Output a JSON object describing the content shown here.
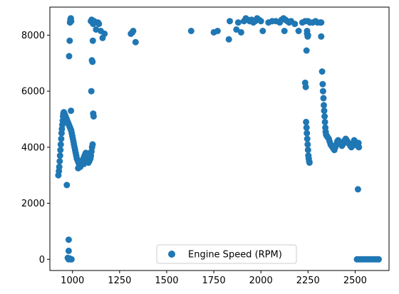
{
  "chart_data": {
    "type": "scatter",
    "title": "",
    "xlabel": "",
    "ylabel": "",
    "xlim": [
      880,
      2680
    ],
    "ylim": [
      -400,
      9000
    ],
    "xticks": [
      1000,
      1250,
      1500,
      1750,
      2000,
      2250,
      2500
    ],
    "yticks": [
      0,
      2000,
      4000,
      6000,
      8000
    ],
    "grid": false,
    "legend_position": "lower center",
    "series": [
      {
        "name": "Engine Speed (RPM)",
        "color": "#1f77b4",
        "points": [
          [
            925,
            3000
          ],
          [
            928,
            3150
          ],
          [
            930,
            3300
          ],
          [
            932,
            3500
          ],
          [
            934,
            3700
          ],
          [
            936,
            3900
          ],
          [
            938,
            4100
          ],
          [
            940,
            4300
          ],
          [
            942,
            4500
          ],
          [
            944,
            4650
          ],
          [
            946,
            4800
          ],
          [
            948,
            4950
          ],
          [
            950,
            5100
          ],
          [
            952,
            5200
          ],
          [
            954,
            5250
          ],
          [
            957,
            5200
          ],
          [
            960,
            5150
          ],
          [
            963,
            5100
          ],
          [
            966,
            5050
          ],
          [
            969,
            5000
          ],
          [
            972,
            4950
          ],
          [
            975,
            4900
          ],
          [
            978,
            4850
          ],
          [
            981,
            4800
          ],
          [
            984,
            4750
          ],
          [
            987,
            4700
          ],
          [
            990,
            4650
          ],
          [
            993,
            4600
          ],
          [
            996,
            4500
          ],
          [
            999,
            4400
          ],
          [
            1002,
            4300
          ],
          [
            1005,
            4200
          ],
          [
            1008,
            4100
          ],
          [
            1011,
            4000
          ],
          [
            1014,
            3900
          ],
          [
            1017,
            3800
          ],
          [
            1020,
            3700
          ],
          [
            1023,
            3600
          ],
          [
            1026,
            3550
          ],
          [
            1029,
            3500
          ],
          [
            1032,
            3450
          ],
          [
            1035,
            3400
          ],
          [
            1038,
            3350
          ],
          [
            1041,
            3300
          ],
          [
            1044,
            3350
          ],
          [
            1047,
            3400
          ],
          [
            1050,
            3450
          ],
          [
            1053,
            3500
          ],
          [
            1056,
            3550
          ],
          [
            1059,
            3600
          ],
          [
            1062,
            3650
          ],
          [
            1065,
            3700
          ],
          [
            1068,
            3750
          ],
          [
            1071,
            3800
          ],
          [
            1074,
            3750
          ],
          [
            1077,
            3700
          ],
          [
            1080,
            3650
          ],
          [
            1083,
            3600
          ],
          [
            1086,
            3550
          ],
          [
            1089,
            3500
          ],
          [
            1092,
            3550
          ],
          [
            1095,
            3600
          ],
          [
            1098,
            3700
          ],
          [
            1101,
            3850
          ],
          [
            1104,
            4000
          ],
          [
            1107,
            4100
          ],
          [
            1030,
            3250
          ],
          [
            1045,
            3500
          ],
          [
            1060,
            3400
          ],
          [
            1085,
            3450
          ],
          [
            970,
            2650
          ],
          [
            980,
            700
          ],
          [
            980,
            300
          ],
          [
            975,
            50
          ],
          [
            985,
            30
          ],
          [
            980,
            0
          ],
          [
            990,
            0
          ],
          [
            995,
            0
          ],
          [
            982,
            7250
          ],
          [
            985,
            7800
          ],
          [
            987,
            8450
          ],
          [
            989,
            8550
          ],
          [
            991,
            8600
          ],
          [
            993,
            8500
          ],
          [
            992,
            5300
          ],
          [
            1100,
            6000
          ],
          [
            1103,
            7100
          ],
          [
            1106,
            7050
          ],
          [
            1108,
            7800
          ],
          [
            1110,
            5200
          ],
          [
            1112,
            5100
          ],
          [
            1098,
            8500
          ],
          [
            1102,
            8550
          ],
          [
            1106,
            8450
          ],
          [
            1110,
            8400
          ],
          [
            1115,
            8500
          ],
          [
            1125,
            8200
          ],
          [
            1135,
            8450
          ],
          [
            1140,
            8400
          ],
          [
            1150,
            8150
          ],
          [
            1160,
            7900
          ],
          [
            1170,
            8050
          ],
          [
            1310,
            8050
          ],
          [
            1318,
            8100
          ],
          [
            1322,
            8150
          ],
          [
            1335,
            7750
          ],
          [
            1630,
            8150
          ],
          [
            1750,
            8100
          ],
          [
            1770,
            8150
          ],
          [
            1830,
            7850
          ],
          [
            1835,
            8500
          ],
          [
            1870,
            8200
          ],
          [
            1880,
            8450
          ],
          [
            1895,
            8100
          ],
          [
            1910,
            8500
          ],
          [
            1920,
            8600
          ],
          [
            1930,
            8550
          ],
          [
            1940,
            8500
          ],
          [
            1950,
            8550
          ],
          [
            1960,
            8450
          ],
          [
            1970,
            8500
          ],
          [
            1980,
            8600
          ],
          [
            1990,
            8550
          ],
          [
            2000,
            8500
          ],
          [
            2010,
            8150
          ],
          [
            2040,
            8450
          ],
          [
            2060,
            8500
          ],
          [
            2080,
            8500
          ],
          [
            2100,
            8450
          ],
          [
            2110,
            8550
          ],
          [
            2120,
            8600
          ],
          [
            2125,
            8150
          ],
          [
            2130,
            8550
          ],
          [
            2140,
            8500
          ],
          [
            2150,
            8450
          ],
          [
            2160,
            8500
          ],
          [
            2180,
            8400
          ],
          [
            2200,
            8150
          ],
          [
            2220,
            8450
          ],
          [
            2235,
            8500
          ],
          [
            2245,
            8150
          ],
          [
            2250,
            8500
          ],
          [
            2260,
            8450
          ],
          [
            2275,
            8450
          ],
          [
            2290,
            8500
          ],
          [
            2300,
            8450
          ],
          [
            2315,
            8450
          ],
          [
            2320,
            8450
          ],
          [
            2235,
            6300
          ],
          [
            2238,
            6150
          ],
          [
            2242,
            7450
          ],
          [
            2245,
            8050
          ],
          [
            2248,
            7950
          ],
          [
            2250,
            8000
          ],
          [
            2240,
            4900
          ],
          [
            2242,
            4700
          ],
          [
            2244,
            4500
          ],
          [
            2246,
            4300
          ],
          [
            2248,
            4100
          ],
          [
            2250,
            3900
          ],
          [
            2252,
            3700
          ],
          [
            2254,
            3600
          ],
          [
            2256,
            3500
          ],
          [
            2258,
            3450
          ],
          [
            2320,
            7950
          ],
          [
            2325,
            6700
          ],
          [
            2328,
            6250
          ],
          [
            2330,
            6000
          ],
          [
            2332,
            5750
          ],
          [
            2334,
            5500
          ],
          [
            2336,
            5300
          ],
          [
            2338,
            5100
          ],
          [
            2340,
            4900
          ],
          [
            2342,
            4700
          ],
          [
            2344,
            4550
          ],
          [
            2346,
            4450
          ],
          [
            2350,
            4400
          ],
          [
            2355,
            4350
          ],
          [
            2360,
            4300
          ],
          [
            2365,
            4200
          ],
          [
            2370,
            4100
          ],
          [
            2375,
            4050
          ],
          [
            2380,
            4000
          ],
          [
            2385,
            3950
          ],
          [
            2390,
            3900
          ],
          [
            2395,
            4000
          ],
          [
            2400,
            4100
          ],
          [
            2405,
            4200
          ],
          [
            2410,
            4250
          ],
          [
            2415,
            4200
          ],
          [
            2420,
            4150
          ],
          [
            2425,
            4100
          ],
          [
            2430,
            4050
          ],
          [
            2435,
            4100
          ],
          [
            2440,
            4200
          ],
          [
            2445,
            4250
          ],
          [
            2450,
            4300
          ],
          [
            2455,
            4250
          ],
          [
            2460,
            4200
          ],
          [
            2465,
            4150
          ],
          [
            2470,
            4100
          ],
          [
            2475,
            4050
          ],
          [
            2480,
            4000
          ],
          [
            2485,
            4050
          ],
          [
            2490,
            4150
          ],
          [
            2495,
            4250
          ],
          [
            2500,
            4200
          ],
          [
            2505,
            4150
          ],
          [
            2510,
            4100
          ],
          [
            2512,
            4050
          ],
          [
            2515,
            4100
          ],
          [
            2518,
            4150
          ],
          [
            2520,
            4000
          ],
          [
            2515,
            2500
          ],
          [
            2510,
            0
          ],
          [
            2520,
            0
          ],
          [
            2530,
            0
          ],
          [
            2540,
            0
          ],
          [
            2550,
            0
          ],
          [
            2560,
            0
          ],
          [
            2570,
            0
          ],
          [
            2580,
            0
          ],
          [
            2590,
            0
          ],
          [
            2600,
            0
          ],
          [
            2610,
            0
          ],
          [
            2620,
            0
          ],
          [
            2625,
            0
          ]
        ]
      }
    ]
  }
}
